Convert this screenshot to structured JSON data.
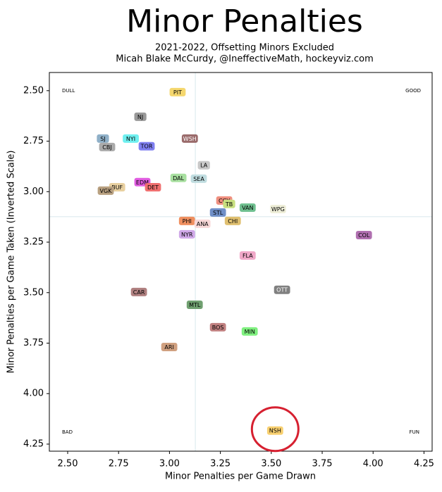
{
  "chart_data": {
    "type": "scatter",
    "title": "Minor Penalties",
    "subtitle": "2021-2022, Offsetting Minors Excluded",
    "credit": "Micah Blake McCurdy, @IneffectiveMath, hockeyviz.com",
    "x_label": "Minor Penalties per Game Drawn",
    "y_label": "Minor Penalties per Game Taken (Inverted Scale)",
    "xlim": [
      2.41,
      4.29
    ],
    "ylim": [
      4.285,
      2.41
    ],
    "y_inverted": true,
    "xticks": [
      {
        "value": 2.5,
        "label": "2.50"
      },
      {
        "value": 2.75,
        "label": "2.75"
      },
      {
        "value": 3.0,
        "label": "3.00"
      },
      {
        "value": 3.25,
        "label": "3.25"
      },
      {
        "value": 3.5,
        "label": "3.50"
      },
      {
        "value": 3.75,
        "label": "3.75"
      },
      {
        "value": 4.0,
        "label": "4.00"
      },
      {
        "value": 4.25,
        "label": "4.25"
      }
    ],
    "yticks": [
      {
        "value": 2.5,
        "label": "2.50"
      },
      {
        "value": 2.75,
        "label": "2.75"
      },
      {
        "value": 3.0,
        "label": "3.00"
      },
      {
        "value": 3.25,
        "label": "3.25"
      },
      {
        "value": 3.5,
        "label": "3.50"
      },
      {
        "value": 3.75,
        "label": "3.75"
      },
      {
        "value": 4.0,
        "label": "4.00"
      },
      {
        "value": 4.25,
        "label": "4.25"
      }
    ],
    "reference_lines": {
      "x": 3.127,
      "y": 3.124,
      "color": "#d8e8ec"
    },
    "corner_labels": {
      "top_left": "DULL",
      "top_right": "GOOD",
      "bottom_left": "BAD",
      "bottom_right": "FUN"
    },
    "labels": [
      "PIT",
      "NJ",
      "SJ",
      "NYI",
      "WSH",
      "CBJ",
      "TOR",
      "LA",
      "DAL",
      "SEA",
      "EDM",
      "BUF",
      "DET",
      "VGK",
      "CGY",
      "TB",
      "VAN",
      "WPG",
      "STL",
      "PHI",
      "CHI",
      "ANA",
      "NYR",
      "COL",
      "FLA",
      "OTT",
      "CAR",
      "MTL",
      "BOS",
      "MIN",
      "ARI",
      "NSH"
    ],
    "x": [
      3.04,
      2.857,
      2.673,
      2.81,
      3.1,
      2.694,
      2.888,
      3.169,
      3.044,
      3.144,
      2.867,
      2.743,
      2.919,
      2.687,
      3.269,
      3.293,
      3.384,
      3.533,
      3.238,
      3.086,
      3.311,
      3.162,
      3.086,
      3.955,
      3.384,
      3.553,
      2.85,
      3.124,
      3.238,
      3.394,
      2.999,
      3.519
    ],
    "y": [
      2.507,
      2.629,
      2.737,
      2.737,
      2.737,
      2.779,
      2.775,
      2.869,
      2.932,
      2.936,
      2.953,
      2.978,
      2.978,
      2.995,
      3.044,
      3.061,
      3.079,
      3.086,
      3.103,
      3.145,
      3.145,
      3.159,
      3.211,
      3.215,
      3.316,
      3.486,
      3.497,
      3.56,
      3.671,
      3.692,
      3.769,
      4.183
    ],
    "colors": [
      "#f5d76e",
      "#999999",
      "#8fb0c8",
      "#6ff0f0",
      "#9a6b6b",
      "#aaaaaa",
      "#7f7ff0",
      "#c8c8c8",
      "#a8e0a0",
      "#c0dde0",
      "#e05ce0",
      "#e8d0a0",
      "#f07070",
      "#b8a080",
      "#f09080",
      "#c8e080",
      "#70c090",
      "#eeeed8",
      "#7090c8",
      "#f09060",
      "#e0c070",
      "#f8d8d8",
      "#d0a8e8",
      "#b070b0",
      "#f0a8c8",
      "#808080",
      "#b08080",
      "#70a070",
      "#c08080",
      "#80f080",
      "#d0a080",
      "#f8d070"
    ],
    "highlight": "NSH",
    "highlight_color": "#d62030"
  }
}
